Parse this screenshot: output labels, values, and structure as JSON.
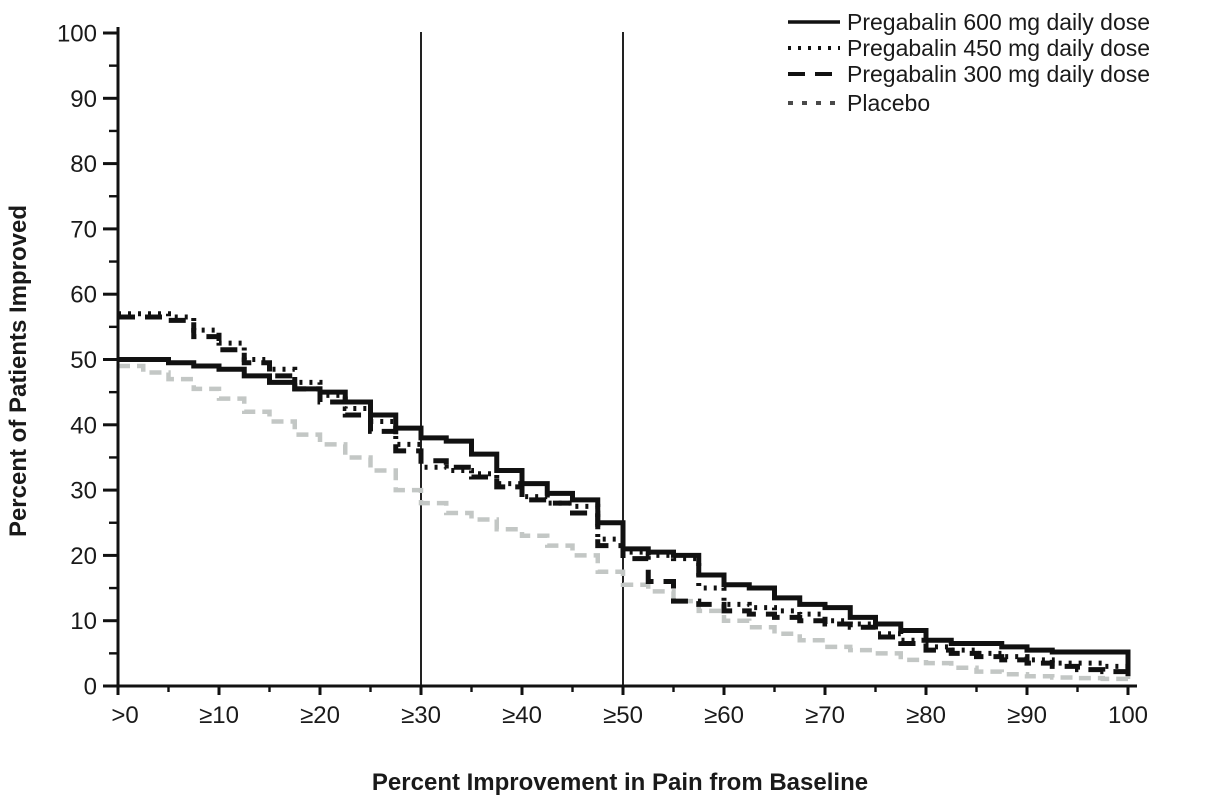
{
  "figure": {
    "background": "#ffffff"
  },
  "chart_data": {
    "type": "line",
    "subtype": "cumulative-responder-step-curves",
    "title": "",
    "xlabel": "Percent Improvement in Pain from Baseline",
    "ylabel": "Percent of Patients Improved",
    "xlim": [
      0,
      100
    ],
    "ylim": [
      0,
      100
    ],
    "grid": false,
    "legend_position": "top-right",
    "x_axis": {
      "tick_labels": [
        ">0",
        "≥10",
        "≥20",
        "≥30",
        "≥40",
        "≥50",
        "≥60",
        "≥70",
        "≥80",
        "≥90",
        "100"
      ],
      "major_tick_step": 10,
      "minor_tick_step": 5
    },
    "y_axis": {
      "tick_labels": [
        "0",
        "10",
        "20",
        "30",
        "40",
        "50",
        "60",
        "70",
        "80",
        "90",
        "100"
      ],
      "major_tick_step": 10,
      "minor_tick_step": 5
    },
    "reference_lines_x": [
      30,
      50
    ],
    "axis_color": "#111111",
    "x": [
      0,
      2.5,
      5,
      7.5,
      10,
      12.5,
      15,
      17.5,
      20,
      22.5,
      25,
      27.5,
      30,
      32.5,
      35,
      37.5,
      40,
      42.5,
      45,
      47.5,
      50,
      52.5,
      55,
      57.5,
      60,
      62.5,
      65,
      67.5,
      70,
      72.5,
      75,
      77.5,
      80,
      82.5,
      85,
      87.5,
      90,
      92.5,
      95,
      97.5,
      100
    ],
    "series": [
      {
        "name": "Pregabalin 600 mg daily dose",
        "line_style": "solid",
        "color": "#111111",
        "values": [
          50,
          50,
          49.5,
          49,
          48.5,
          47.5,
          46.5,
          45.5,
          45,
          43.5,
          41.5,
          39.5,
          38,
          37.5,
          35.5,
          33,
          31,
          29.5,
          28.5,
          25,
          21,
          20.5,
          20,
          17,
          15.5,
          15,
          13.5,
          12.5,
          12,
          10.5,
          9.5,
          8.5,
          7,
          6.5,
          6.5,
          6,
          5.5,
          5.2,
          5.2,
          5.2,
          1.5
        ]
      },
      {
        "name": "Pregabalin 450 mg daily dose",
        "line_style": "dotted",
        "color": "#111111",
        "values": [
          57,
          57,
          56.5,
          54.5,
          52.5,
          50,
          48.5,
          46.5,
          44.5,
          42.5,
          40.5,
          37,
          33.5,
          33,
          32.5,
          31,
          29,
          28,
          27.5,
          22.5,
          20.5,
          20,
          19.5,
          15,
          12.5,
          12,
          11.5,
          11,
          10,
          9.5,
          8,
          7,
          6,
          5.5,
          5,
          4.5,
          4,
          3.5,
          3.5,
          3,
          2.5
        ]
      },
      {
        "name": "Pregabalin 300 mg daily dose",
        "line_style": "long-dash",
        "color": "#111111",
        "values": [
          56.5,
          56.5,
          56,
          53.5,
          51.5,
          49.5,
          47.5,
          45.5,
          43.5,
          41.5,
          39,
          36,
          34.5,
          33.5,
          32,
          30.5,
          28.5,
          28,
          26.5,
          21.5,
          19.5,
          16,
          13,
          12.5,
          11.5,
          11,
          10.5,
          10,
          9.5,
          9,
          7.5,
          6.5,
          5.5,
          5,
          4.5,
          4,
          3.5,
          3,
          2.5,
          2.2,
          2
        ]
      },
      {
        "name": "Placebo",
        "line_style": "short-dash",
        "color": "#c3c7c5",
        "legend_color": "#4a4a4a",
        "values": [
          49,
          48,
          47,
          45.5,
          44,
          42,
          40.5,
          38.5,
          37,
          35,
          33,
          30,
          28,
          26.5,
          25.5,
          24,
          23,
          21.5,
          20,
          17.5,
          15.5,
          14.5,
          13,
          11.5,
          10,
          9,
          8,
          7,
          6,
          5.5,
          5,
          4,
          3.5,
          2.8,
          2.2,
          1.8,
          1.5,
          1.3,
          1.2,
          1.1,
          1
        ]
      }
    ]
  }
}
